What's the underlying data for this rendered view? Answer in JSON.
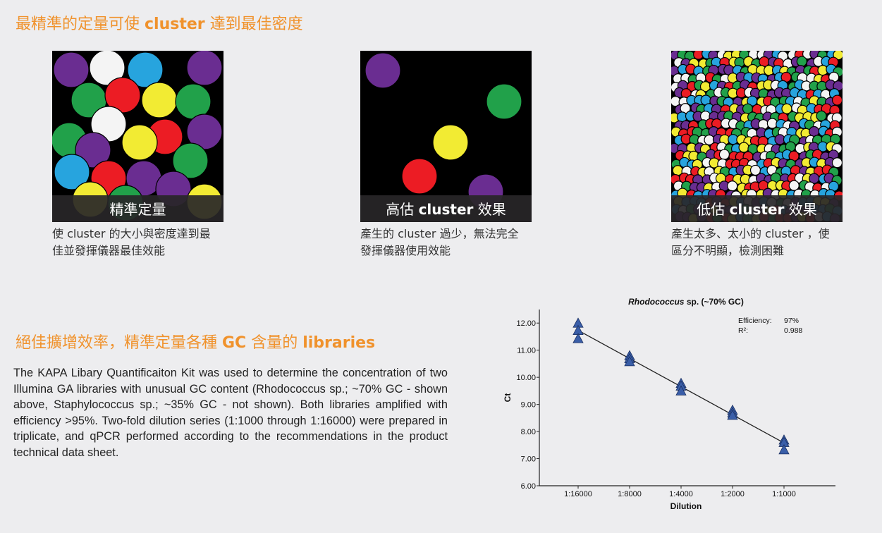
{
  "heading1": {
    "pre": "最精準的定量可使 ",
    "bold": "cluster",
    "post": " 達到最佳密度"
  },
  "panels": [
    {
      "label_pre": "精準定量",
      "label_bold": "",
      "label_post": "",
      "line1": "使 cluster 的大小與密度達到最",
      "line2": "佳並發揮儀器最佳效能"
    },
    {
      "label_pre": "高估 ",
      "label_bold": "cluster",
      "label_post": " 效果",
      "line1": "產生的 cluster 過少，無法完全",
      "line2": "發揮儀器使用效能"
    },
    {
      "label_pre": "低估 ",
      "label_bold": "cluster",
      "label_post": " 效果",
      "line1": "產生太多、太小的 cluster ，使",
      "line2": "區分不明顯，檢測困難"
    }
  ],
  "heading2": {
    "pre": "絕佳擴增效率，精準定量各種 ",
    "bold1": "GC",
    "mid": " 含量的 ",
    "bold2": "libraries"
  },
  "body_text": "The KAPA Libary Quantificaiton Kit was used to determine the concentration of two Illumina GA libraries with unusual GC content (Rhodococcus sp.; ~70% GC - shown above, Staphylococcus sp.; ~35% GC - not shown). Both libraries amplified with efficiency >95%. Two-fold dilution series (1:1000 through 1:16000) were prepared in triplicate, and qPCR performed according to the recommendations in the product technical data sheet.",
  "colors": {
    "orange": "#f0922c",
    "marker": "#3a5ea8"
  },
  "chart_data": {
    "type": "scatter",
    "title_italic": "Rhodococcus",
    "title_rest": " sp. (~70% GC)",
    "xlabel": "Dilution",
    "ylabel": "Ct",
    "categories": [
      "1:16000",
      "1:8000",
      "1:4000",
      "1:2000",
      "1:1000"
    ],
    "ylim": [
      6.0,
      12.5
    ],
    "yticks": [
      "6.00",
      "7.00",
      "8.00",
      "9.00",
      "10.00",
      "11.00",
      "12.00"
    ],
    "points": [
      [
        12.0,
        11.73,
        11.43
      ],
      [
        10.8,
        10.69,
        10.58
      ],
      [
        9.78,
        9.68,
        9.5
      ],
      [
        8.79,
        8.69,
        8.6
      ],
      [
        7.69,
        7.6,
        7.33
      ]
    ],
    "fit": {
      "start": 11.73,
      "end": 7.58
    },
    "stats": [
      {
        "label": "Efficiency:",
        "value": "97%"
      },
      {
        "label": "R²:",
        "value": "0.988"
      }
    ]
  }
}
